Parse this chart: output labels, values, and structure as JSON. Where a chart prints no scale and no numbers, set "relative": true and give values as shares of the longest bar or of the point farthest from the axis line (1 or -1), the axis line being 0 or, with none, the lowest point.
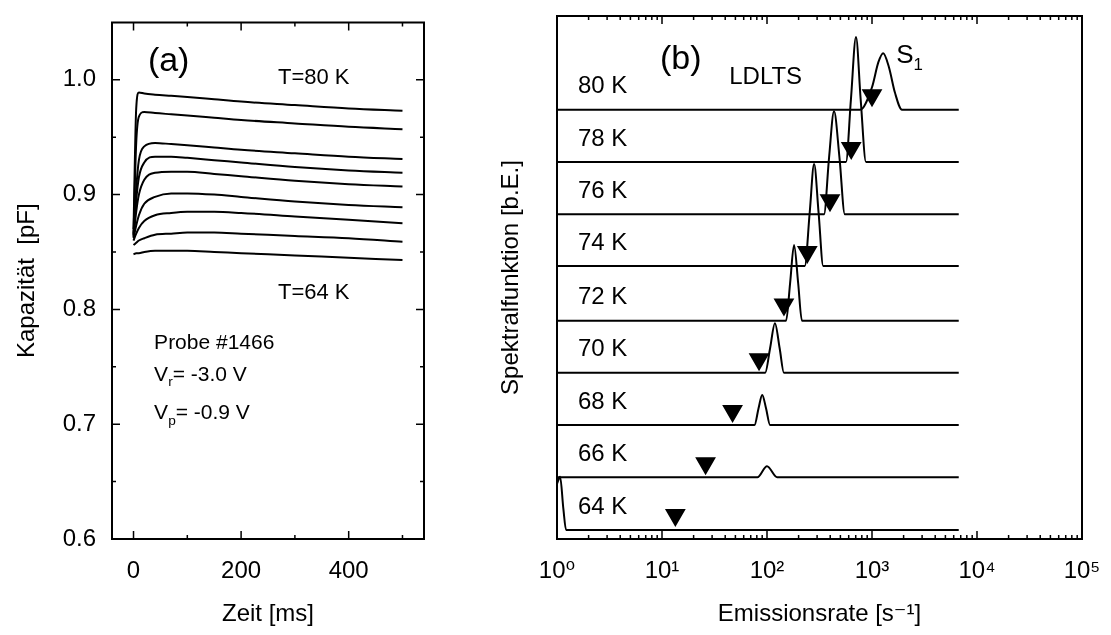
{
  "chart_data": [
    {
      "type": "line",
      "xlabel": "Zeit [ms]",
      "ylabel": "Kapazität  [pF]",
      "x": [
        0,
        5,
        10,
        20,
        40,
        70,
        100,
        150,
        200,
        300,
        400,
        500
      ],
      "xlim": [
        -40,
        540
      ],
      "xticks": [
        0,
        {
          "value": 100,
          "label": null
        },
        200,
        {
          "value": 300,
          "label": null
        },
        400,
        {
          "value": 500,
          "label": null
        }
      ],
      "ylim": [
        0.6,
        1.05
      ],
      "yticks": [
        0.6,
        {
          "value": 0.65,
          "label": null
        },
        0.7,
        {
          "value": 0.75,
          "label": null
        },
        0.8,
        {
          "value": 0.85,
          "label": null
        },
        0.9,
        {
          "value": 0.95,
          "label": null
        },
        {
          "value": 1,
          "label": "1.0"
        }
      ],
      "series": [
        {
          "color": "#000000",
          "values": [
            0.87,
            0.975,
            0.989,
            0.988,
            0.987,
            0.986,
            0.985,
            0.983,
            0.981,
            0.978,
            0.975,
            0.973
          ]
        },
        {
          "color": "#000000",
          "values": [
            0.866,
            0.945,
            0.968,
            0.972,
            0.971,
            0.97,
            0.969,
            0.967,
            0.965,
            0.962,
            0.959,
            0.957
          ]
        },
        {
          "color": "#000000",
          "values": [
            0.865,
            0.905,
            0.93,
            0.942,
            0.945,
            0.944,
            0.943,
            0.941,
            0.939,
            0.936,
            0.933,
            0.931
          ]
        },
        {
          "color": "#000000",
          "values": [
            0.864,
            0.895,
            0.915,
            0.928,
            0.933,
            0.933,
            0.932,
            0.93,
            0.928,
            0.924,
            0.921,
            0.919
          ]
        },
        {
          "color": "#000000",
          "values": [
            0.863,
            0.885,
            0.9,
            0.913,
            0.919,
            0.92,
            0.92,
            0.918,
            0.916,
            0.912,
            0.909,
            0.907
          ]
        },
        {
          "color": "#000000",
          "values": [
            0.862,
            0.873,
            0.882,
            0.892,
            0.898,
            0.901,
            0.901,
            0.9,
            0.898,
            0.894,
            0.891,
            0.889
          ]
        },
        {
          "color": "#000000",
          "values": [
            0.86,
            0.866,
            0.871,
            0.877,
            0.882,
            0.884,
            0.885,
            0.885,
            0.884,
            0.881,
            0.878,
            0.875
          ]
        },
        {
          "color": "#000000",
          "values": [
            0.856,
            0.858,
            0.86,
            0.862,
            0.865,
            0.866,
            0.867,
            0.867,
            0.866,
            0.864,
            0.862,
            0.859
          ]
        },
        {
          "color": "#000000",
          "values": [
            0.848,
            0.849,
            0.849,
            0.85,
            0.851,
            0.851,
            0.851,
            0.85,
            0.849,
            0.847,
            0.845,
            0.843
          ]
        }
      ],
      "annotations": [
        "(a)",
        "T=80 K",
        "T=64 K",
        "Probe #1466",
        "V$_{r}$= -3.0 V",
        "V$_{p}$= -0.9 V"
      ]
    },
    {
      "type": "line",
      "relative": true,
      "log": "x",
      "tick_labels": "x",
      "xlabel": "Emissionsrate [s⁻¹]",
      "ylabel": "Spektralfunktion [b.E.]",
      "xlim": [
        1,
        100000
      ],
      "xticks": [
        {
          "value": 1,
          "label": "10⁰"
        },
        {
          "value": 2,
          "label": null
        },
        {
          "value": 3,
          "label": null
        },
        {
          "value": 4,
          "label": null
        },
        {
          "value": 5,
          "label": null
        },
        {
          "value": 6,
          "label": null
        },
        {
          "value": 7,
          "label": null
        },
        {
          "value": 8,
          "label": null
        },
        {
          "value": 9,
          "label": null
        },
        {
          "value": 10,
          "label": "10¹"
        },
        {
          "value": 20,
          "label": null
        },
        {
          "value": 30,
          "label": null
        },
        {
          "value": 40,
          "label": null
        },
        {
          "value": 50,
          "label": null
        },
        {
          "value": 60,
          "label": null
        },
        {
          "value": 70,
          "label": null
        },
        {
          "value": 80,
          "label": null
        },
        {
          "value": 90,
          "label": null
        },
        {
          "value": 100,
          "label": "10²"
        },
        {
          "value": 200,
          "label": null
        },
        {
          "value": 300,
          "label": null
        },
        {
          "value": 400,
          "label": null
        },
        {
          "value": 500,
          "label": null
        },
        {
          "value": 600,
          "label": null
        },
        {
          "value": 700,
          "label": null
        },
        {
          "value": 800,
          "label": null
        },
        {
          "value": 900,
          "label": null
        },
        {
          "value": 1000,
          "label": "10³"
        },
        {
          "value": 2000,
          "label": null
        },
        {
          "value": 3000,
          "label": null
        },
        {
          "value": 4000,
          "label": null
        },
        {
          "value": 5000,
          "label": null
        },
        {
          "value": 6000,
          "label": null
        },
        {
          "value": 7000,
          "label": null
        },
        {
          "value": 8000,
          "label": null
        },
        {
          "value": 9000,
          "label": null
        },
        {
          "value": 10000,
          "label": "10⁴"
        },
        {
          "value": 20000,
          "label": null
        },
        {
          "value": 30000,
          "label": null
        },
        {
          "value": 40000,
          "label": null
        },
        {
          "value": 50000,
          "label": null
        },
        {
          "value": 60000,
          "label": null
        },
        {
          "value": 70000,
          "label": null
        },
        {
          "value": 80000,
          "label": null
        },
        {
          "value": 90000,
          "label": null
        },
        {
          "value": 100000,
          "label": "10⁵"
        }
      ],
      "series": [
        {
          "name": "80 K",
          "color": "#000000",
          "x": [
            1,
            769,
            1000,
            1150,
            1279,
            1450,
            1650,
            1932,
            6700
          ],
          "values": [
            0.855,
            0.855,
            0.9,
            0.95,
            0.968,
            0.94,
            0.89,
            0.855,
            0.855
          ]
        },
        {
          "name": "78 K",
          "color": "#000000",
          "x": [
            1,
            565,
            630,
            704,
            780,
            877,
            6700
          ],
          "values": [
            0.751,
            0.751,
            0.876,
            1.0,
            0.876,
            0.751,
            0.751
          ]
        },
        {
          "name": "76 K",
          "color": "#000000",
          "x": [
            1,
            349,
            390,
            435,
            490,
            551,
            6700
          ],
          "values": [
            0.647,
            0.647,
            0.76,
            0.852,
            0.76,
            0.647,
            0.647
          ]
        },
        {
          "name": "74 K",
          "color": "#000000",
          "x": [
            1,
            229,
            255,
            281,
            310,
            343,
            6700
          ],
          "values": [
            0.544,
            0.544,
            0.65,
            0.747,
            0.65,
            0.544,
            0.544
          ]
        },
        {
          "name": "72 K",
          "color": "#000000",
          "x": [
            1,
            152,
            166,
            181,
            198,
            215,
            6700
          ],
          "values": [
            0.435,
            0.435,
            0.51,
            0.586,
            0.51,
            0.435,
            0.435
          ]
        },
        {
          "name": "70 K",
          "color": "#000000",
          "x": [
            1,
            96,
            107,
            119,
            132,
            145,
            6700
          ],
          "values": [
            0.331,
            0.331,
            0.38,
            0.43,
            0.38,
            0.331,
            0.331
          ]
        },
        {
          "name": "68 K",
          "color": "#000000",
          "x": [
            1,
            76,
            83,
            90,
            98,
            107,
            6700
          ],
          "values": [
            0.227,
            0.227,
            0.26,
            0.287,
            0.26,
            0.227,
            0.227
          ]
        },
        {
          "name": "66 K",
          "color": "#000000",
          "x": [
            1,
            81,
            100,
            125,
            6700
          ],
          "values": [
            0.123,
            0.123,
            0.145,
            0.123,
            0.123
          ]
        },
        {
          "name": "64 K",
          "color": "#000000",
          "x": [
            1,
            1.07,
            1.15,
            1.22,
            6700
          ],
          "values": [
            0.11,
            0.124,
            0.06,
            0.018,
            0.018
          ]
        },
        {
          "type": "scatter",
          "marker": "triangle",
          "color": "#000000",
          "x": [
            1000,
            634,
            398,
            242,
            145,
            84,
            47,
            26,
            13.4
          ],
          "values": [
            0.884,
            0.779,
            0.675,
            0.572,
            0.467,
            0.358,
            0.255,
            0.151,
            0.048
          ]
        }
      ],
      "annotations": [
        "(b)",
        "LDLTS",
        "S$_{1}$"
      ]
    }
  ]
}
